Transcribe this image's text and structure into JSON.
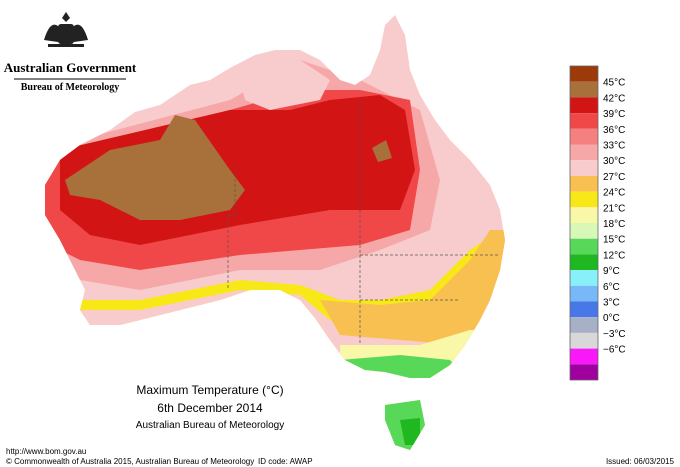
{
  "header": {
    "government": "Australian Government",
    "bureau": "Bureau of Meteorology"
  },
  "map": {
    "title": "Maximum Temperature (°C)",
    "date": "6th December 2014",
    "source": "Australian Bureau of Meteorology"
  },
  "legend": {
    "colors": [
      "#9c3a0a",
      "#a8703a",
      "#d21414",
      "#f04848",
      "#f58080",
      "#f6a8a8",
      "#f8cccc",
      "#f8c050",
      "#f8e818",
      "#f8f8a8",
      "#d8f8b8",
      "#58d858",
      "#20b820",
      "#88f0f8",
      "#78b8f8",
      "#4878e8",
      "#a8b0c8",
      "#d8d8d8",
      "#f818f8",
      "#a000a0"
    ],
    "labels": [
      "45°C",
      "42°C",
      "39°C",
      "36°C",
      "33°C",
      "30°C",
      "27°C",
      "24°C",
      "21°C",
      "18°C",
      "15°C",
      "12°C",
      "9°C",
      "6°C",
      "3°C",
      "0°C",
      "−3°C",
      "−6°C"
    ]
  },
  "footer": {
    "url": "http://www.bom.gov.au",
    "copyright": "© Commonwealth of Australia 2015, Australian Bureau of Meteorology",
    "id_code": "ID code: AWAP",
    "issued": "Issued: 06/03/2015"
  }
}
